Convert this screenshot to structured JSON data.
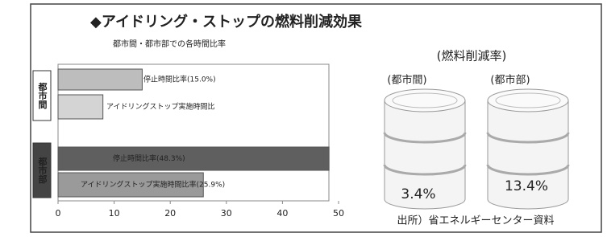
{
  "title": "◆アイドリング・ストップの燃料削減効果",
  "source": "出所）省エネルギーセンター資料",
  "chart_data": [
    {
      "type": "bar",
      "orientation": "horizontal",
      "subtitle": "都市間・都市部での各時間比率",
      "groups": [
        "都市間",
        "都市部"
      ],
      "categories": [
        "停止時間比率(15.0%)",
        "アイドリングストップ実施時間比",
        "停止時間比率(48.3%)",
        "アイドリングストップ実施時間比率(25.9%)"
      ],
      "values": [
        15.0,
        8,
        48.3,
        25.9
      ],
      "colors": [
        "#bdbdbd",
        "#d4d4d4",
        "#5f5f5f",
        "#9a9a9a"
      ],
      "xlim": [
        0,
        50
      ],
      "xticks": [
        0,
        10,
        20,
        30,
        40,
        50
      ]
    },
    {
      "type": "pictogram",
      "title": "(燃料削減率)",
      "categories": [
        "(都市間)",
        "(都市部)"
      ],
      "values": [
        3.4,
        13.4
      ],
      "value_labels": [
        "3.4%",
        "13.4%"
      ]
    }
  ]
}
